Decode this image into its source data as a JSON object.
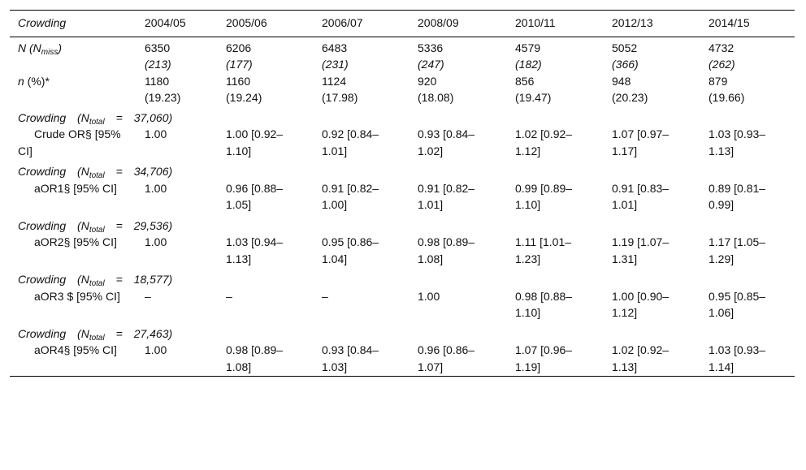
{
  "table": {
    "header": [
      "Crowding",
      "2004/05",
      "2005/06",
      "2006/07",
      "2008/09",
      "2010/11",
      "2012/13",
      "2014/15"
    ],
    "n_row": {
      "label": [
        "N (N",
        "miss",
        ")"
      ],
      "cells": [
        [
          "6350",
          "(213)"
        ],
        [
          "6206",
          "(177)"
        ],
        [
          "6483",
          "(231)"
        ],
        [
          "5336",
          "(247)"
        ],
        [
          "4579",
          "(182)"
        ],
        [
          "5052",
          "(366)"
        ],
        [
          "4732",
          "(262)"
        ]
      ]
    },
    "pct_row": {
      "label": [
        "n",
        " (%)*"
      ],
      "cells": [
        [
          "1180",
          "(19.23)"
        ],
        [
          "1160",
          "(19.24)"
        ],
        [
          "1124",
          "(17.98)"
        ],
        [
          "920",
          "(18.08)"
        ],
        [
          "856",
          "(19.47)"
        ],
        [
          "948",
          "(20.23)"
        ],
        [
          "879",
          "(19.66)"
        ]
      ]
    },
    "sections": [
      {
        "title": [
          "Crowding (N",
          "total",
          "=",
          "37,060)"
        ],
        "label": "Crude OR§ [95% CI]",
        "cells": [
          "1.00",
          "1.00 [0.92–1.10]",
          "0.92 [0.84–1.01]",
          "0.93 [0.84–1.02]",
          "1.02 [0.92–1.12]",
          "1.07 [0.97–1.17]",
          "1.03 [0.93–1.13]"
        ]
      },
      {
        "title": [
          "Crowding (N",
          "total",
          "=",
          "34,706)"
        ],
        "label": "aOR1§ [95% CI]",
        "cells": [
          "1.00",
          "0.96 [0.88–1.05]",
          "0.91 [0.82–1.00]",
          "0.91 [0.82–1.01]",
          "0.99 [0.89–1.10]",
          "0.91 [0.83–1.01]",
          "0.89 [0.81–0.99]"
        ]
      },
      {
        "title": [
          "Crowding (N",
          "total",
          "=",
          "29,536)"
        ],
        "label": "aOR2§ [95% CI]",
        "cells": [
          "1.00",
          "1.03 [0.94–1.13]",
          "0.95 [0.86–1.04]",
          "0.98 [0.89–1.08]",
          "1.11 [1.01–1.23]",
          "1.19 [1.07–1.31]",
          "1.17 [1.05–1.29]"
        ]
      },
      {
        "title": [
          "Crowding (N",
          "total",
          "=",
          "18,577)"
        ],
        "label": "aOR3 $ [95% CI]",
        "cells": [
          "–",
          "–",
          "–",
          "1.00",
          "0.98 [0.88–1.10]",
          "1.00 [0.90–1.12]",
          "0.95 [0.85–1.06]"
        ]
      },
      {
        "title": [
          "Crowding (N",
          "total",
          "=",
          "27,463)"
        ],
        "label": "aOR4§ [95% CI]",
        "cells": [
          "1.00",
          "0.98 [0.89–1.08]",
          "0.93 [0.84–1.03]",
          "0.96 [0.86–1.07]",
          "1.07 [0.96–1.19]",
          "1.02 [0.92–1.13]",
          "1.03 [0.93–1.14]"
        ]
      }
    ]
  }
}
